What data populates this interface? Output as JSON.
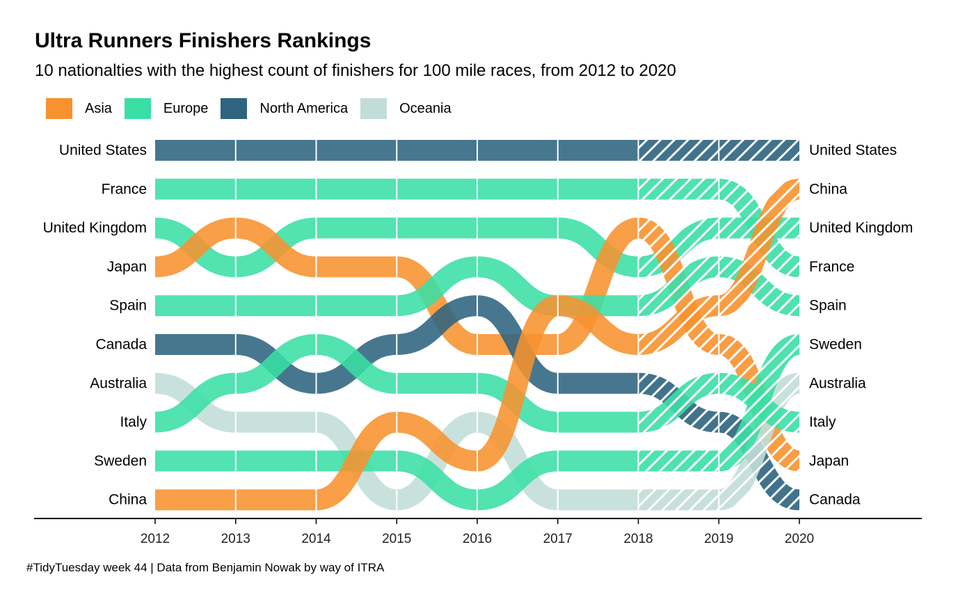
{
  "chart_data": {
    "type": "bump",
    "title": "Ultra Runners Finishers Rankings",
    "subtitle": "10 nationalties with the highest count of finishers for 100 mile races, from 2012 to 2020",
    "caption": "#TidyTuesday week 44 | Data from Benjamin Nowak by way of ITRA",
    "x_ticks": [
      "2012",
      "2013",
      "2014",
      "2015",
      "2016",
      "2017",
      "2018",
      "2019",
      "2020"
    ],
    "legend": [
      {
        "name": "Asia",
        "color": "#F7922F"
      },
      {
        "name": "Europe",
        "color": "#3ADFA5"
      },
      {
        "name": "North America",
        "color": "#2E6480"
      },
      {
        "name": "Oceania",
        "color": "#C2DDD7"
      }
    ],
    "hatched_from_year": 2018,
    "left_labels": [
      "United States",
      "France",
      "United Kingdom",
      "Japan",
      "Spain",
      "Canada",
      "Australia",
      "Italy",
      "Sweden",
      "China"
    ],
    "right_labels": [
      "United States",
      "China",
      "United Kingdom",
      "France",
      "Spain",
      "Sweden",
      "Australia",
      "Italy",
      "Japan",
      "Canada"
    ],
    "series": [
      {
        "name": "United States",
        "region": "North America",
        "ranks": [
          1,
          1,
          1,
          1,
          1,
          1,
          1,
          1,
          1
        ]
      },
      {
        "name": "France",
        "region": "Europe",
        "ranks": [
          2,
          2,
          2,
          2,
          2,
          2,
          2,
          2,
          4
        ]
      },
      {
        "name": "United Kingdom",
        "region": "Europe",
        "ranks": [
          3,
          4,
          3,
          3,
          3,
          3,
          4,
          3,
          3
        ]
      },
      {
        "name": "Japan",
        "region": "Asia",
        "ranks": [
          4,
          3,
          4,
          4,
          6,
          6,
          3,
          6,
          9
        ]
      },
      {
        "name": "Spain",
        "region": "Europe",
        "ranks": [
          5,
          5,
          5,
          5,
          4,
          5,
          5,
          4,
          5
        ]
      },
      {
        "name": "Canada",
        "region": "North America",
        "ranks": [
          6,
          6,
          7,
          6,
          5,
          7,
          7,
          8,
          10
        ]
      },
      {
        "name": "Australia",
        "region": "Oceania",
        "ranks": [
          7,
          8,
          8,
          10,
          8,
          10,
          10,
          10,
          7
        ]
      },
      {
        "name": "Italy",
        "region": "Europe",
        "ranks": [
          8,
          7,
          6,
          7,
          7,
          8,
          8,
          7,
          8
        ]
      },
      {
        "name": "Sweden",
        "region": "Europe",
        "ranks": [
          9,
          9,
          9,
          9,
          10,
          9,
          9,
          9,
          6
        ]
      },
      {
        "name": "China",
        "region": "Asia",
        "ranks": [
          10,
          10,
          10,
          8,
          9,
          5,
          6,
          5,
          2
        ]
      }
    ]
  }
}
